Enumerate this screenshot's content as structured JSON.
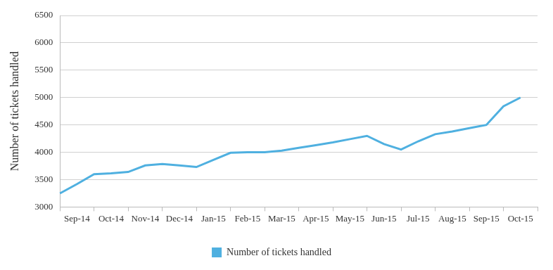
{
  "chart_data": {
    "type": "line",
    "ylabel": "Number of tickets handled",
    "categories": [
      null,
      "Sep-14",
      null,
      "Oct-14",
      null,
      "Nov-14",
      null,
      "Dec-14",
      null,
      "Jan-15",
      null,
      "Feb-15",
      null,
      "Mar-15",
      null,
      "Apr-15",
      null,
      "May-15",
      null,
      "Jun-15",
      null,
      "Jul-15",
      null,
      "Aug-15",
      null,
      "Sep-15",
      null,
      "Oct-15",
      null
    ],
    "series": [
      {
        "name": "Number of tickets handled",
        "color": "#4fb0e0",
        "values": [
          3250,
          3420,
          3600,
          3615,
          3640,
          3760,
          3785,
          3760,
          3730,
          3860,
          3990,
          4000,
          4000,
          4030,
          4080,
          4130,
          4180,
          4240,
          4300,
          4150,
          4050,
          4200,
          4330,
          4380,
          4440,
          4500,
          4840,
          5000,
          null
        ]
      }
    ],
    "ylim": [
      3000,
      6500
    ],
    "yticks": [
      3000,
      3500,
      4000,
      4500,
      5000,
      5500,
      6000,
      6500
    ],
    "grid": true,
    "legend": "bottom"
  }
}
